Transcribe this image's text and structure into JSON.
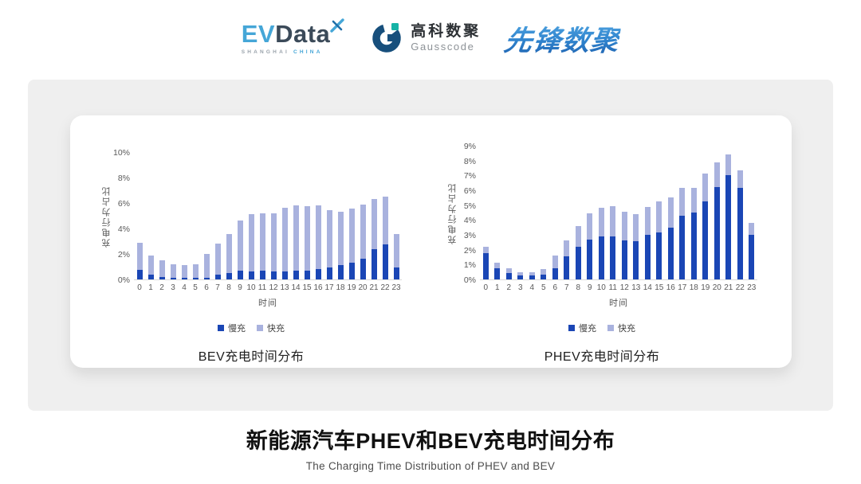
{
  "header": {
    "evdata": {
      "ev": "EV",
      "data": "Data",
      "sub_left": "SHANGHAI",
      "sub_right": "CHINA"
    },
    "gausscode": {
      "cn": "高科数聚",
      "en": "Gausscode"
    },
    "xianfeng": "先锋数聚"
  },
  "colors": {
    "slow_charge": "#1a46b5",
    "fast_charge": "#a9b2de",
    "axis_text": "#595959",
    "evdata_blue": "#45a6d7",
    "evdata_dark": "#3b4a59",
    "gausscode_navy": "#174f7c",
    "gausscode_teal": "#16b3a6",
    "xianfeng_blue": "#2f83cd"
  },
  "chart_data": [
    {
      "type": "bar",
      "stacked": true,
      "title": "BEV充电时间分布",
      "xlabel": "时间",
      "ylabel": "充电行为占比",
      "grid": false,
      "legend_position": "bottom",
      "ylim": [
        0,
        10
      ],
      "ytick_step": 2,
      "ytick_suffix": "%",
      "categories": [
        0,
        1,
        2,
        3,
        4,
        5,
        6,
        7,
        8,
        9,
        10,
        11,
        12,
        13,
        14,
        15,
        16,
        17,
        18,
        19,
        20,
        21,
        22,
        23
      ],
      "series": [
        {
          "name": "慢充",
          "color": "#1a46b5",
          "values": [
            0.75,
            0.35,
            0.2,
            0.1,
            0.1,
            0.1,
            0.15,
            0.35,
            0.5,
            0.7,
            0.65,
            0.7,
            0.6,
            0.65,
            0.7,
            0.7,
            0.8,
            0.95,
            1.1,
            1.3,
            1.6,
            2.4,
            2.75,
            0.95
          ]
        },
        {
          "name": "快充",
          "color": "#a9b2de",
          "values": [
            2.15,
            1.55,
            1.3,
            1.1,
            1.0,
            1.1,
            1.85,
            2.45,
            3.05,
            3.9,
            4.5,
            4.5,
            4.6,
            4.95,
            5.1,
            5.05,
            5.0,
            4.5,
            4.2,
            4.25,
            4.3,
            3.9,
            3.75,
            2.6
          ]
        }
      ]
    },
    {
      "type": "bar",
      "stacked": true,
      "title": "PHEV充电时间分布",
      "xlabel": "时间",
      "ylabel": "充电行为占比",
      "grid": false,
      "legend_position": "bottom",
      "ylim": [
        0,
        9
      ],
      "ytick_step": 1,
      "ytick_suffix": "%",
      "categories": [
        0,
        1,
        2,
        3,
        4,
        5,
        6,
        7,
        8,
        9,
        10,
        11,
        12,
        13,
        14,
        15,
        16,
        17,
        18,
        19,
        20,
        21,
        22,
        23
      ],
      "series": [
        {
          "name": "慢充",
          "color": "#1a46b5",
          "values": [
            1.75,
            0.75,
            0.45,
            0.25,
            0.25,
            0.3,
            0.75,
            1.55,
            2.2,
            2.7,
            2.9,
            2.9,
            2.65,
            2.55,
            3.0,
            3.15,
            3.5,
            4.3,
            4.5,
            5.25,
            6.2,
            7.0,
            6.15,
            3.0
          ]
        },
        {
          "name": "快充",
          "color": "#a9b2de",
          "values": [
            0.45,
            0.4,
            0.3,
            0.25,
            0.25,
            0.4,
            0.85,
            1.05,
            1.4,
            1.75,
            1.9,
            2.05,
            1.9,
            1.85,
            1.9,
            2.1,
            2.0,
            1.85,
            1.65,
            1.85,
            1.7,
            1.4,
            1.2,
            0.8
          ]
        }
      ]
    }
  ],
  "footer": {
    "title": "新能源汽车PHEV和BEV充电时间分布",
    "subtitle": "The Charging Time Distribution of PHEV and BEV"
  }
}
